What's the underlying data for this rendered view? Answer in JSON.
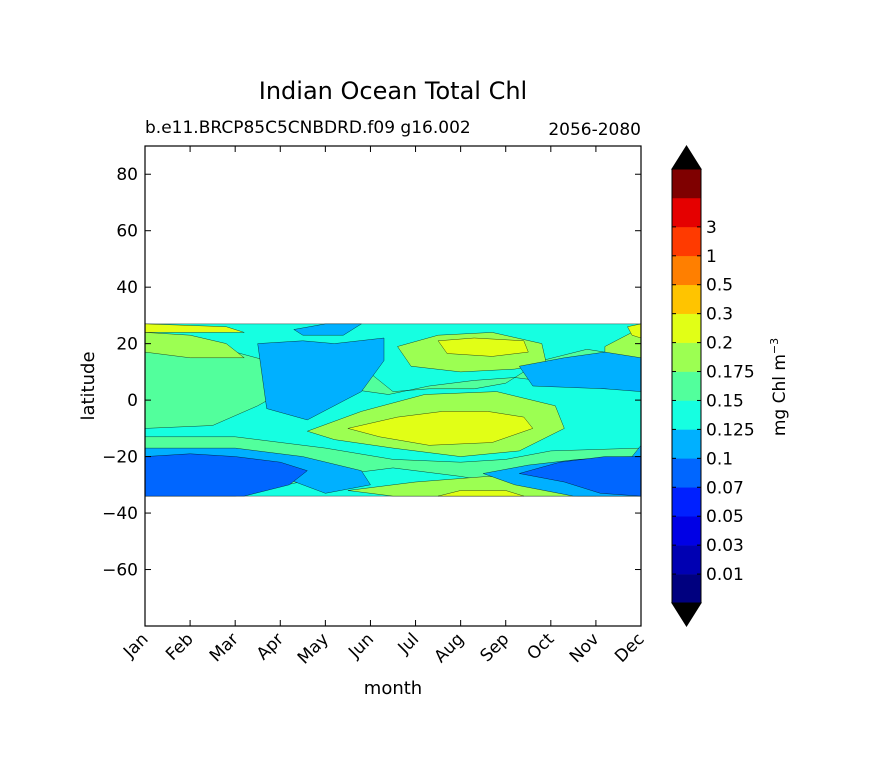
{
  "chart_data": {
    "type": "heatmap",
    "title": "Indian Ocean Total Chl",
    "subtitle_left": "b.e11.BRCP85C5CNBDRD.f09 g16.002",
    "subtitle_right": "2056-2080",
    "xlabel": "month",
    "ylabel": "latitude",
    "x_categories": [
      "Jan",
      "Feb",
      "Mar",
      "Apr",
      "May",
      "Jun",
      "Jul",
      "Aug",
      "Sep",
      "Oct",
      "Nov",
      "Dec"
    ],
    "xlim": [
      1,
      12
    ],
    "ylim": [
      -80,
      90
    ],
    "y_ticks": [
      80,
      60,
      40,
      20,
      0,
      -20,
      -40,
      -60
    ],
    "y_tick_labels": [
      "80",
      "60",
      "40",
      "20",
      "0",
      "−20",
      "−40",
      "−60"
    ],
    "data_lat_range": [
      -34,
      27
    ],
    "colorbar": {
      "label": "mg Chl m",
      "label_exp": "−3",
      "extend": "both",
      "levels": [
        0.01,
        0.03,
        0.05,
        0.07,
        0.1,
        0.125,
        0.15,
        0.175,
        0.2,
        0.3,
        0.5,
        1,
        3
      ],
      "tick_labels": [
        "0.01",
        "0.03",
        "0.05",
        "0.07",
        "0.1",
        "0.125",
        "0.15",
        "0.175",
        "0.2",
        "0.3",
        "0.5",
        "1",
        "3"
      ],
      "colors": [
        "#00007f",
        "#0000b2",
        "#0000e5",
        "#0020ff",
        "#0066ff",
        "#00b0ff",
        "#16ffe1",
        "#52ff9c",
        "#9cff52",
        "#e1ff16",
        "#ffc400",
        "#ff7f00",
        "#ff3a00",
        "#e50000",
        "#7f0000"
      ],
      "over_color": "#000000",
      "under_color": "#000000"
    },
    "regions": [
      {
        "level": 0.125,
        "x": [
          1,
          12,
          12,
          1
        ],
        "y": [
          27,
          27,
          -34,
          -34
        ]
      },
      {
        "level": 0.15,
        "x": [
          1,
          2,
          3,
          3.7,
          4.6,
          5.8,
          6.5,
          7.3,
          8.3,
          9,
          9.8,
          10.8,
          12,
          12,
          11.2,
          10.2,
          9.2,
          8.3,
          7.3,
          6.4,
          5.5,
          4.5,
          3.5,
          2.5,
          1
        ],
        "y": [
          19,
          16,
          17,
          14,
          14,
          12,
          3,
          4,
          4,
          6,
          14,
          18,
          15,
          4,
          4,
          6,
          8,
          7,
          5,
          2,
          4,
          7,
          -2,
          -9,
          -10
        ]
      },
      {
        "level": 0.15,
        "x": [
          1,
          3,
          5,
          6.5,
          8,
          9,
          10,
          12,
          12,
          10.6,
          9.5,
          8,
          6.5,
          5,
          3,
          1
        ],
        "y": [
          -13,
          -13,
          -17,
          -21,
          -22,
          -21,
          -18,
          -17,
          -34,
          -34,
          -31,
          -27,
          -24,
          -27,
          -34,
          -34
        ]
      },
      {
        "level": 0.175,
        "x": [
          1,
          2,
          2.8,
          3.2,
          2,
          1
        ],
        "y": [
          24,
          23,
          20,
          15,
          15,
          17
        ]
      },
      {
        "level": 0.175,
        "x": [
          11.2,
          11.8,
          12,
          12,
          11.5,
          11.2
        ],
        "y": [
          19,
          24,
          25,
          13,
          12,
          16
        ]
      },
      {
        "level": 0.175,
        "x": [
          6.6,
          7.5,
          8.7,
          9.8,
          9.9,
          9.2,
          8,
          6.9
        ],
        "y": [
          19,
          23,
          24,
          20,
          13,
          11,
          10,
          12
        ]
      },
      {
        "level": 0.175,
        "x": [
          4.6,
          5.8,
          7.2,
          8.8,
          10.1,
          10.3,
          9.3,
          8,
          6.5,
          5.2
        ],
        "y": [
          -11,
          -4,
          2,
          3,
          -2,
          -10,
          -18,
          -20,
          -17,
          -14
        ]
      },
      {
        "level": 0.175,
        "x": [
          5.5,
          7,
          8.6,
          10,
          11,
          10,
          8,
          6.5
        ],
        "y": [
          -32,
          -29,
          -27,
          -28,
          -34,
          -34,
          -34,
          -34
        ]
      },
      {
        "level": 0.2,
        "x": [
          1,
          2.8,
          3.2,
          2,
          1
        ],
        "y": [
          27,
          26,
          24,
          24,
          24
        ]
      },
      {
        "level": 0.2,
        "x": [
          11.7,
          12,
          12,
          11.8
        ],
        "y": [
          26,
          27,
          22,
          23
        ]
      },
      {
        "level": 0.2,
        "x": [
          7.5,
          8.3,
          9.4,
          9.5,
          8.7,
          7.7
        ],
        "y": [
          21,
          22,
          21,
          17,
          15.5,
          16.5
        ]
      },
      {
        "level": 0.2,
        "x": [
          5.5,
          6.6,
          7.6,
          8.6,
          9.4,
          9.6,
          8.7,
          7.3,
          6.2
        ],
        "y": [
          -10,
          -6,
          -4,
          -4,
          -6,
          -10,
          -15,
          -16,
          -13
        ]
      },
      {
        "level": 0.2,
        "x": [
          7.5,
          8,
          9,
          9.4,
          8.5,
          7.7
        ],
        "y": [
          -34,
          -32,
          -32,
          -34,
          -34,
          -34
        ]
      },
      {
        "level": 0.1,
        "x": [
          3.5,
          4.5,
          5.2,
          6.3,
          6.3,
          5.8,
          4.6,
          3.7
        ],
        "y": [
          20,
          21,
          20,
          22,
          14,
          3,
          -7,
          -3
        ]
      },
      {
        "level": 0.1,
        "x": [
          9.3,
          10.3,
          11.2,
          12,
          12,
          11.2,
          9.6
        ],
        "y": [
          12,
          15,
          17,
          15,
          3,
          4,
          5
        ]
      },
      {
        "level": 0.1,
        "x": [
          1,
          3,
          4.5,
          5.8,
          6,
          5,
          3.5,
          1
        ],
        "y": [
          -17,
          -17,
          -20,
          -25,
          -30,
          -33,
          -24,
          -21
        ]
      },
      {
        "level": 0.1,
        "x": [
          8.5,
          9.5,
          10.6,
          11.8,
          12,
          12,
          10.5,
          9.2
        ],
        "y": [
          -26,
          -23,
          -21,
          -20,
          -16,
          -34,
          -34,
          -30
        ]
      },
      {
        "level": 0.1,
        "x": [
          4.3,
          5,
          5.8,
          5.4,
          4.5
        ],
        "y": [
          25,
          27,
          27,
          23,
          23
        ]
      },
      {
        "level": 0.07,
        "x": [
          1,
          2,
          3,
          4,
          4.6,
          4.2,
          3.2,
          2,
          1
        ],
        "y": [
          -20,
          -19,
          -20,
          -22,
          -25,
          -30,
          -34,
          -34,
          -34
        ]
      },
      {
        "level": 0.07,
        "x": [
          9.3,
          10.2,
          11.2,
          12,
          12,
          11.1,
          10.3
        ],
        "y": [
          -26,
          -22,
          -20,
          -20,
          -34,
          -33,
          -29
        ]
      }
    ]
  }
}
